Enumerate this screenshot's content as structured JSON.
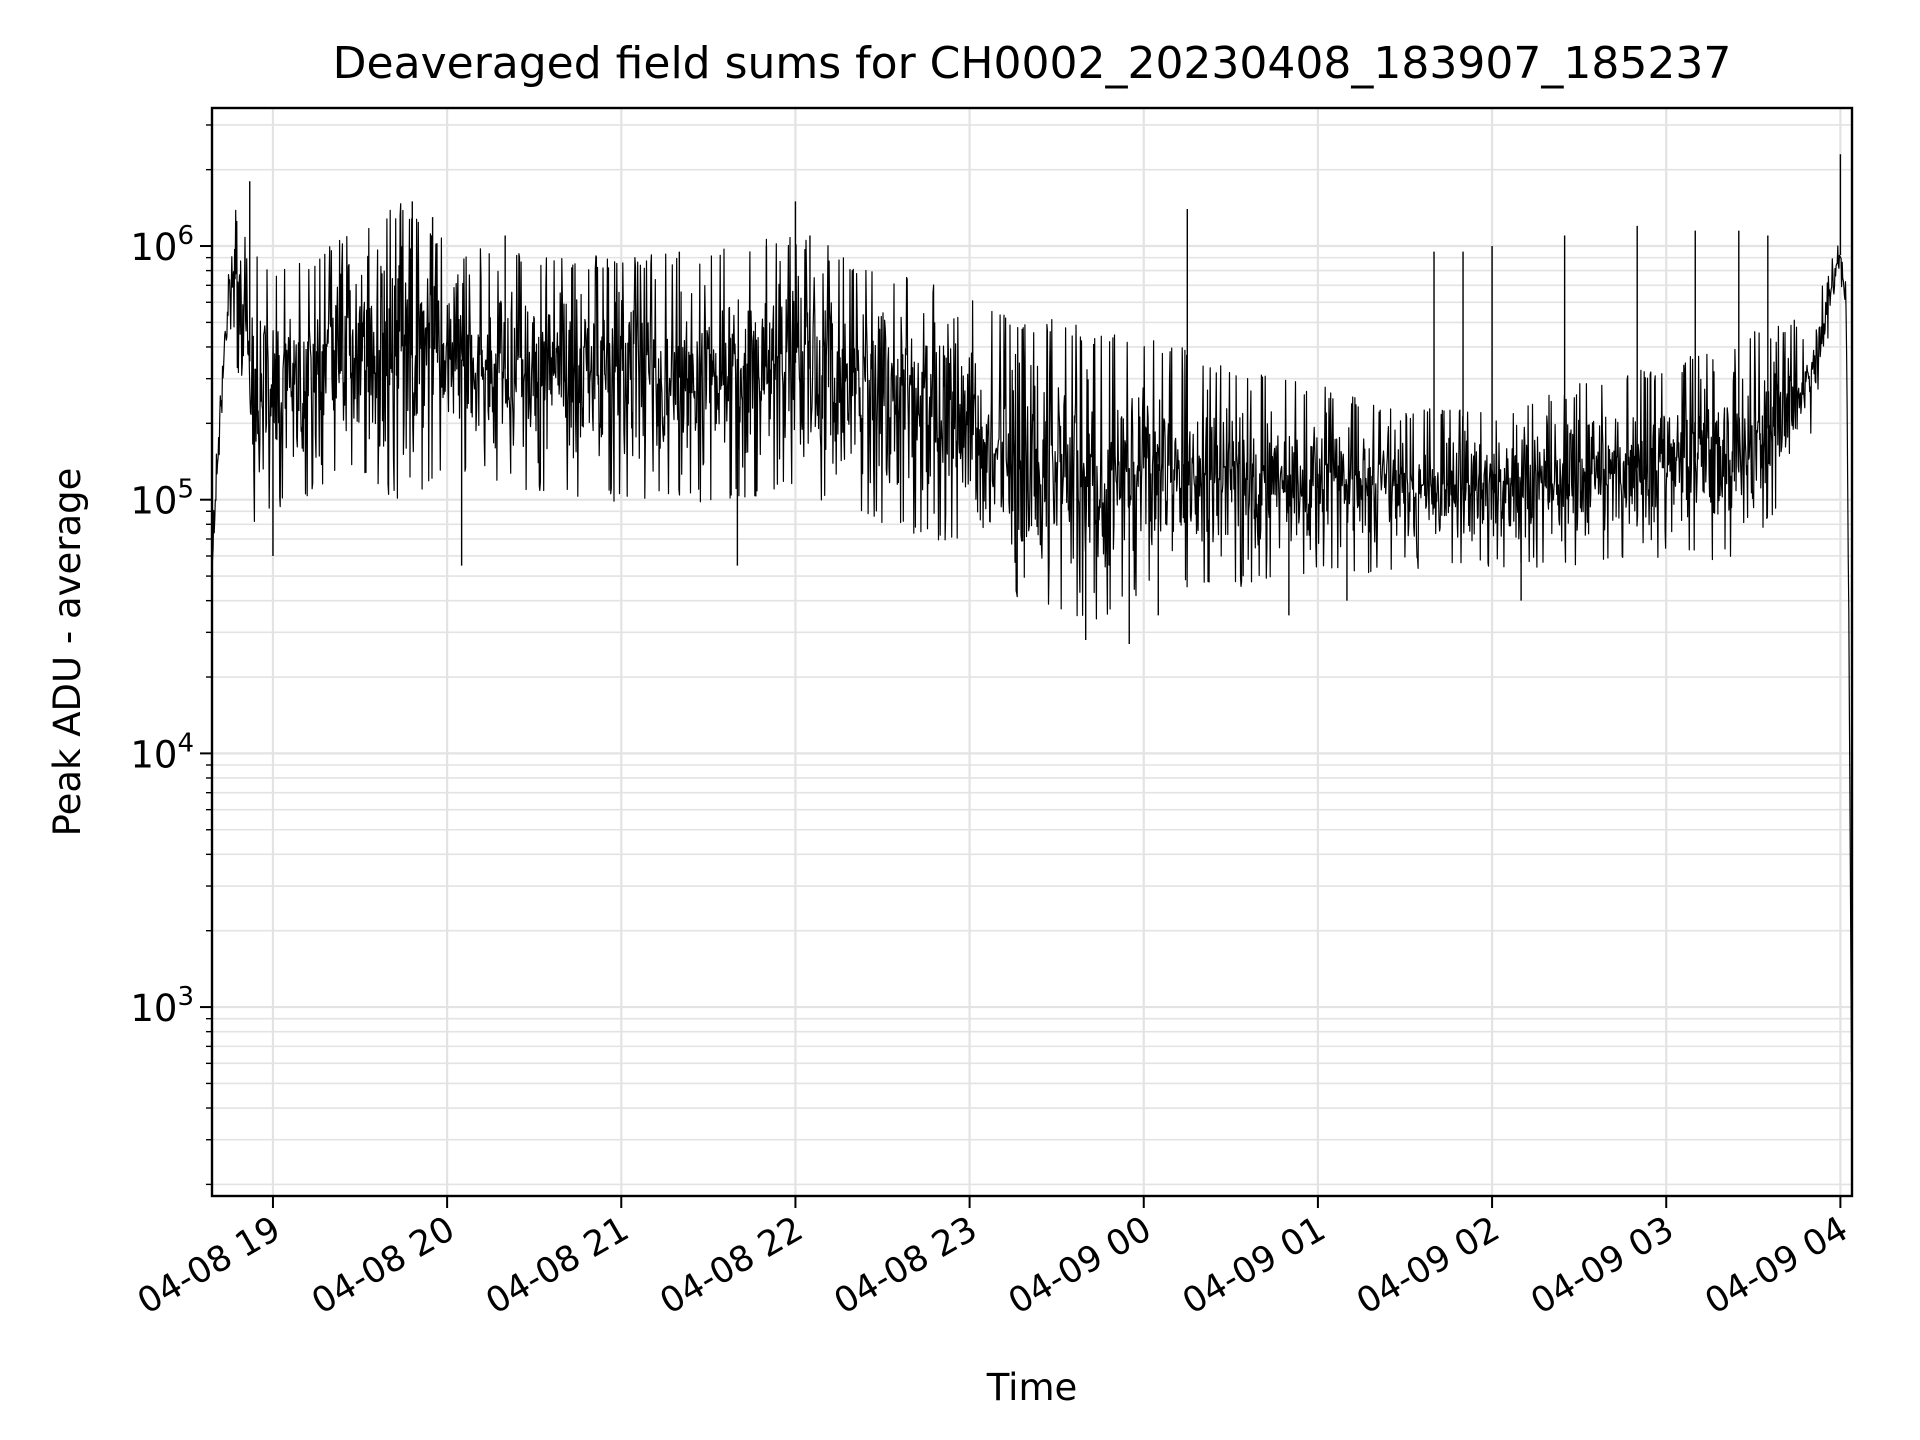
{
  "chart_data": {
    "type": "line",
    "title": "Deaveraged field sums for CH0002_20230408_183907_185237",
    "xlabel": "Time",
    "ylabel": "Peak ADU - average",
    "x_axis": {
      "kind": "datetime",
      "range": [
        "2023-04-08 18:39",
        "2023-04-09 04:04"
      ],
      "ticks": [
        {
          "value": "2023-04-08 19:00",
          "label": "04-08 19"
        },
        {
          "value": "2023-04-08 20:00",
          "label": "04-08 20"
        },
        {
          "value": "2023-04-08 21:00",
          "label": "04-08 21"
        },
        {
          "value": "2023-04-08 22:00",
          "label": "04-08 22"
        },
        {
          "value": "2023-04-08 23:00",
          "label": "04-08 23"
        },
        {
          "value": "2023-04-09 00:00",
          "label": "04-09 00"
        },
        {
          "value": "2023-04-09 01:00",
          "label": "04-09 01"
        },
        {
          "value": "2023-04-09 02:00",
          "label": "04-09 02"
        },
        {
          "value": "2023-04-09 03:00",
          "label": "04-09 03"
        },
        {
          "value": "2023-04-09 04:00",
          "label": "04-09 04"
        }
      ]
    },
    "y_axis": {
      "scale": "log",
      "range": [
        180,
        3500000
      ],
      "ticks": [
        {
          "value": 1000,
          "base": "10",
          "exp": "3"
        },
        {
          "value": 10000,
          "base": "10",
          "exp": "4"
        },
        {
          "value": 100000,
          "base": "10",
          "exp": "5"
        },
        {
          "value": 1000000,
          "base": "10",
          "exp": "6"
        }
      ]
    },
    "grid": true,
    "line_color": "#000000",
    "envelope": [
      {
        "t": "2023-04-08 18:39",
        "hi": 60000,
        "lo": 45000
      },
      {
        "t": "2023-04-08 18:42",
        "hi": 300000,
        "lo": 200000
      },
      {
        "t": "2023-04-08 18:45",
        "hi": 1000000,
        "lo": 500000
      },
      {
        "t": "2023-04-08 18:48",
        "hi": 1300000,
        "lo": 350000
      },
      {
        "t": "2023-04-08 18:54",
        "hi": 800000,
        "lo": 80000
      },
      {
        "t": "2023-04-08 19:00",
        "hi": 700000,
        "lo": 100000
      },
      {
        "t": "2023-04-08 19:15",
        "hi": 800000,
        "lo": 120000
      },
      {
        "t": "2023-04-08 19:30",
        "hi": 1100000,
        "lo": 150000
      },
      {
        "t": "2023-04-08 19:45",
        "hi": 1300000,
        "lo": 100000
      },
      {
        "t": "2023-04-08 20:00",
        "hi": 900000,
        "lo": 150000
      },
      {
        "t": "2023-04-08 20:30",
        "hi": 800000,
        "lo": 120000
      },
      {
        "t": "2023-04-08 21:00",
        "hi": 800000,
        "lo": 110000
      },
      {
        "t": "2023-04-08 21:30",
        "hi": 850000,
        "lo": 110000
      },
      {
        "t": "2023-04-08 22:00",
        "hi": 1000000,
        "lo": 120000
      },
      {
        "t": "2023-04-08 22:30",
        "hi": 700000,
        "lo": 90000
      },
      {
        "t": "2023-04-08 23:00",
        "hi": 600000,
        "lo": 70000
      },
      {
        "t": "2023-04-08 23:15",
        "hi": 450000,
        "lo": 45000
      },
      {
        "t": "2023-04-08 23:30",
        "hi": 450000,
        "lo": 40000
      },
      {
        "t": "2023-04-08 23:45",
        "hi": 400000,
        "lo": 35000
      },
      {
        "t": "2023-04-09 00:00",
        "hi": 400000,
        "lo": 50000
      },
      {
        "t": "2023-04-09 00:30",
        "hi": 300000,
        "lo": 50000
      },
      {
        "t": "2023-04-09 01:00",
        "hi": 250000,
        "lo": 55000
      },
      {
        "t": "2023-04-09 01:30",
        "hi": 200000,
        "lo": 60000
      },
      {
        "t": "2023-04-09 02:00",
        "hi": 200000,
        "lo": 60000
      },
      {
        "t": "2023-04-09 02:30",
        "hi": 250000,
        "lo": 60000
      },
      {
        "t": "2023-04-09 03:00",
        "hi": 300000,
        "lo": 65000
      },
      {
        "t": "2023-04-09 03:30",
        "hi": 400000,
        "lo": 65000
      },
      {
        "t": "2023-04-09 03:50",
        "hi": 500000,
        "lo": 200000
      },
      {
        "t": "2023-04-09 04:00",
        "hi": 1000000,
        "lo": 850000
      },
      {
        "t": "2023-04-09 04:02",
        "hi": 600000,
        "lo": 500000
      },
      {
        "t": "2023-04-09 04:03",
        "hi": 30000,
        "lo": 20000
      },
      {
        "t": "2023-04-09 04:04",
        "hi": 300,
        "lo": 250
      }
    ],
    "spikes": [
      {
        "t": "2023-04-08 18:52",
        "value": 1800000
      },
      {
        "t": "2023-04-08 19:48",
        "value": 1500000
      },
      {
        "t": "2023-04-08 19:55",
        "value": 1300000
      },
      {
        "t": "2023-04-08 20:20",
        "value": 1100000
      },
      {
        "t": "2023-04-08 21:20",
        "value": 950000
      },
      {
        "t": "2023-04-08 21:50",
        "value": 1000000
      },
      {
        "t": "2023-04-08 22:00",
        "value": 1500000
      },
      {
        "t": "2023-04-08 22:05",
        "value": 1100000
      },
      {
        "t": "2023-04-09 00:15",
        "value": 1400000
      },
      {
        "t": "2023-04-09 01:40",
        "value": 950000
      },
      {
        "t": "2023-04-09 01:50",
        "value": 950000
      },
      {
        "t": "2023-04-09 02:00",
        "value": 1000000
      },
      {
        "t": "2023-04-09 02:25",
        "value": 1100000
      },
      {
        "t": "2023-04-09 02:50",
        "value": 1200000
      },
      {
        "t": "2023-04-09 03:10",
        "value": 1150000
      },
      {
        "t": "2023-04-09 03:25",
        "value": 1150000
      },
      {
        "t": "2023-04-09 03:35",
        "value": 1100000
      },
      {
        "t": "2023-04-09 04:00",
        "value": 2300000
      },
      {
        "t": "2023-04-08 19:00",
        "value": 60000
      },
      {
        "t": "2023-04-08 20:05",
        "value": 55000
      },
      {
        "t": "2023-04-08 21:40",
        "value": 55000
      },
      {
        "t": "2023-04-08 23:40",
        "value": 28000
      },
      {
        "t": "2023-04-08 23:55",
        "value": 27000
      },
      {
        "t": "2023-04-09 00:05",
        "value": 35000
      },
      {
        "t": "2023-04-09 00:50",
        "value": 35000
      },
      {
        "t": "2023-04-09 01:10",
        "value": 40000
      },
      {
        "t": "2023-04-09 02:10",
        "value": 40000
      }
    ]
  }
}
